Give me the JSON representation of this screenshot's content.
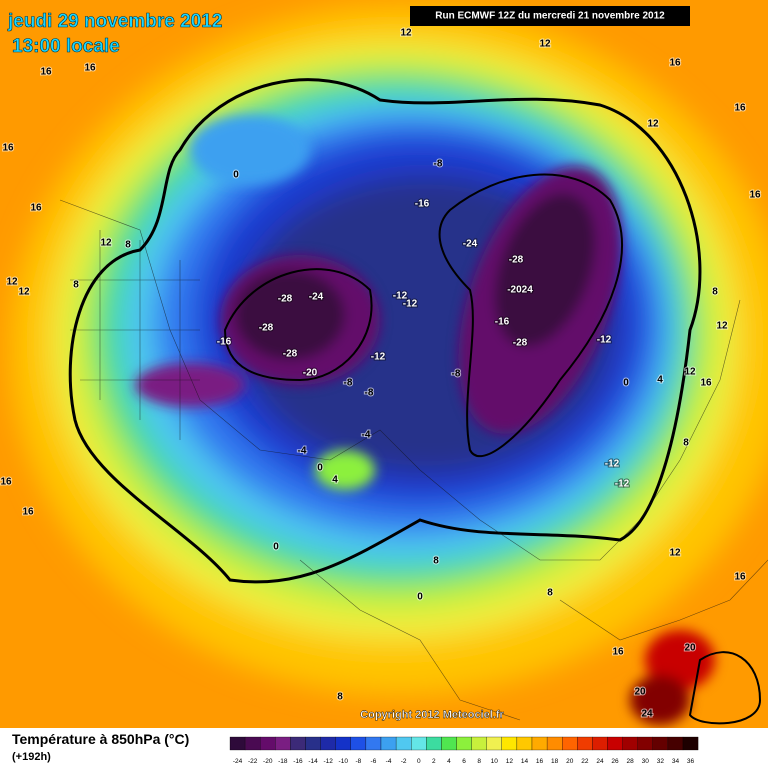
{
  "header": {
    "date": "jeudi 29 novembre 2012",
    "time": "13:00 locale",
    "run": "Run ECMWF 12Z du mercredi 21 novembre 2012"
  },
  "copyright": "Copyright 2012 Meteociel.fr",
  "legend": {
    "title": "Température à 850hPa (°C)",
    "subtitle": "(+192h)",
    "ticks": [
      -24,
      -22,
      -20,
      -18,
      -16,
      -14,
      -12,
      -10,
      -8,
      -6,
      -4,
      -2,
      0,
      2,
      4,
      6,
      8,
      10,
      12,
      14,
      16,
      18,
      20,
      22,
      24,
      26,
      28,
      30,
      32,
      34,
      36
    ],
    "colors": [
      "#2e0a3a",
      "#4a0a52",
      "#640c6a",
      "#7a1e82",
      "#3c2a78",
      "#28308a",
      "#1e2aa8",
      "#1432c8",
      "#1e50e6",
      "#3278f0",
      "#3ca0f0",
      "#50c8f0",
      "#64e6e6",
      "#3cdca0",
      "#50e650",
      "#8cf03c",
      "#c8f03c",
      "#f0f050",
      "#ffe600",
      "#ffc800",
      "#ffaa00",
      "#ff8c00",
      "#ff6400",
      "#f03c00",
      "#dc1e00",
      "#c80000",
      "#a00000",
      "#820000",
      "#640000",
      "#460000",
      "#1e0000"
    ]
  },
  "map_labels": [
    "16",
    "16",
    "16",
    "16",
    "12",
    "12",
    "12",
    "8",
    "8",
    "0",
    "12",
    "12",
    "16",
    "16",
    "12",
    "16",
    "8",
    "12",
    "16",
    "-8",
    "-16",
    "-24",
    "-28",
    "-2024",
    "-16",
    "-28",
    "-28",
    "-24",
    "-28",
    "-16",
    "-28",
    "-20",
    "-12",
    "-12",
    "-12",
    "-8",
    "-8",
    "-8",
    "-4",
    "-4",
    "0",
    "4",
    "0",
    "-12",
    "-12",
    "-12",
    "0",
    "4",
    "12",
    "8",
    "12",
    "16",
    "20",
    "20",
    "24",
    "16",
    "16",
    "16",
    "0",
    "8",
    "8",
    "8"
  ]
}
